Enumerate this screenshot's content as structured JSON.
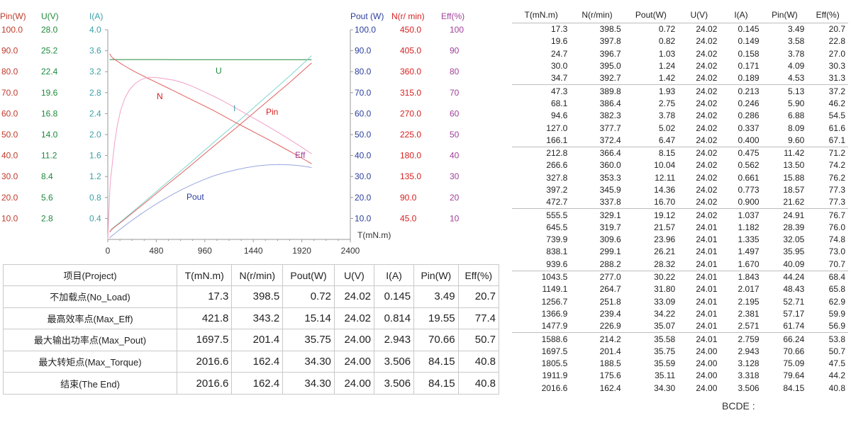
{
  "chart_data": {
    "type": "line",
    "xlabel": "T(mN.m)",
    "x_ticks": [
      "0",
      "480",
      "960",
      "1440",
      "1920",
      "2400"
    ],
    "xlim": [
      0,
      2400
    ],
    "left_axes": [
      {
        "name": "Pin(W)",
        "color": "#c0392b",
        "ticks": [
          "100.0",
          "90.0",
          "80.0",
          "70.0",
          "60.0",
          "50.0",
          "40.0",
          "30.0",
          "20.0",
          "10.0"
        ]
      },
      {
        "name": "U(V)",
        "color": "#1e8a3c",
        "ticks": [
          "28.0",
          "25.2",
          "22.4",
          "19.6",
          "16.8",
          "14.0",
          "11.2",
          "8.4",
          "5.6",
          "2.8"
        ]
      },
      {
        "name": "I(A)",
        "color": "#3aa0a8",
        "ticks": [
          "4.0",
          "3.6",
          "3.2",
          "2.8",
          "2.4",
          "2.0",
          "1.6",
          "1.2",
          "0.8",
          "0.4"
        ]
      }
    ],
    "right_axes": [
      {
        "name": "Pout (W)",
        "color": "#2a3f9d",
        "ticks": [
          "100.0",
          "90.0",
          "80.0",
          "70.0",
          "60.0",
          "50.0",
          "40.0",
          "30.0",
          "20.0",
          "10.0"
        ]
      },
      {
        "name": "N(r/ min)",
        "color": "#d62020",
        "ticks": [
          "450.0",
          "405.0",
          "360.0",
          "315.0",
          "270.0",
          "225.0",
          "180.0",
          "135.0",
          "90.0",
          "45.0"
        ]
      },
      {
        "name": "Eff(%)",
        "color": "#a0409a",
        "ticks": [
          "100",
          "90",
          "80",
          "70",
          "60",
          "50",
          "40",
          "30",
          "20",
          "10"
        ]
      }
    ],
    "series": [
      {
        "name": "U",
        "color": "#1e8a3c",
        "axis": "U(V)",
        "ymax": 28
      },
      {
        "name": "I",
        "color": "#7fd6cf",
        "axis": "I(A)",
        "ymax": 4
      },
      {
        "name": "Pin",
        "color": "#e06060",
        "axis": "Pin(W)",
        "ymax": 100
      },
      {
        "name": "N",
        "color": "#e06060",
        "axis": "N(r/ min)",
        "ymax": 450
      },
      {
        "name": "Eff",
        "color": "#f0a0c8",
        "axis": "Eff(%)",
        "ymax": 100
      },
      {
        "name": "Pout",
        "color": "#9aa6e0",
        "axis": "Pout (W)",
        "ymax": 100
      }
    ],
    "rows": [
      [
        17.3,
        398.5,
        0.72,
        24.02,
        0.145,
        3.49,
        20.7
      ],
      [
        19.6,
        397.8,
        0.82,
        24.02,
        0.149,
        3.58,
        22.8
      ],
      [
        24.7,
        396.7,
        1.03,
        24.02,
        0.158,
        3.78,
        27.0
      ],
      [
        30.0,
        395.0,
        1.24,
        24.02,
        0.171,
        4.09,
        30.3
      ],
      [
        34.7,
        392.7,
        1.42,
        24.02,
        0.189,
        4.53,
        31.3
      ],
      [
        47.3,
        389.8,
        1.93,
        24.02,
        0.213,
        5.13,
        37.2
      ],
      [
        68.1,
        386.4,
        2.75,
        24.02,
        0.246,
        5.9,
        46.2
      ],
      [
        94.6,
        382.3,
        3.78,
        24.02,
        0.286,
        6.88,
        54.5
      ],
      [
        127.0,
        377.7,
        5.02,
        24.02,
        0.337,
        8.09,
        61.6
      ],
      [
        166.1,
        372.4,
        6.47,
        24.02,
        0.4,
        9.6,
        67.1
      ],
      [
        212.8,
        366.4,
        8.15,
        24.02,
        0.475,
        11.42,
        71.2
      ],
      [
        266.6,
        360.0,
        10.04,
        24.02,
        0.562,
        13.5,
        74.2
      ],
      [
        327.8,
        353.3,
        12.11,
        24.02,
        0.661,
        15.88,
        76.2
      ],
      [
        397.2,
        345.9,
        14.36,
        24.02,
        0.773,
        18.57,
        77.3
      ],
      [
        472.7,
        337.8,
        16.7,
        24.02,
        0.9,
        21.62,
        77.3
      ],
      [
        555.5,
        329.1,
        19.12,
        24.02,
        1.037,
        24.91,
        76.7
      ],
      [
        645.5,
        319.7,
        21.57,
        24.01,
        1.182,
        28.39,
        76.0
      ],
      [
        739.9,
        309.6,
        23.96,
        24.01,
        1.335,
        32.05,
        74.8
      ],
      [
        838.1,
        299.1,
        26.21,
        24.01,
        1.497,
        35.95,
        73.0
      ],
      [
        939.6,
        288.2,
        28.32,
        24.01,
        1.67,
        40.09,
        70.7
      ],
      [
        1043.5,
        277.0,
        30.22,
        24.01,
        1.843,
        44.24,
        68.4
      ],
      [
        1149.1,
        264.7,
        31.8,
        24.01,
        2.017,
        48.43,
        65.8
      ],
      [
        1256.7,
        251.8,
        33.09,
        24.01,
        2.195,
        52.71,
        62.9
      ],
      [
        1366.9,
        239.4,
        34.22,
        24.01,
        2.381,
        57.17,
        59.9
      ],
      [
        1477.9,
        226.9,
        35.07,
        24.01,
        2.571,
        61.74,
        56.9
      ],
      [
        1588.6,
        214.2,
        35.58,
        24.01,
        2.759,
        66.24,
        53.8
      ],
      [
        1697.5,
        201.4,
        35.75,
        24.0,
        2.943,
        70.66,
        50.7
      ],
      [
        1805.5,
        188.5,
        35.59,
        24.0,
        3.128,
        75.09,
        47.5
      ],
      [
        1911.9,
        175.6,
        35.11,
        24.0,
        3.318,
        79.64,
        44.2
      ],
      [
        2016.6,
        162.4,
        34.3,
        24.0,
        3.506,
        84.15,
        40.8
      ]
    ]
  },
  "raw_table": {
    "headers": [
      "T(mN.m)",
      "N(r/min)",
      "Pout(W)",
      "U(V)",
      "I(A)",
      "Pin(W)",
      "Eff(%)"
    ],
    "rows": [
      [
        "17.3",
        "398.5",
        "0.72",
        "24.02",
        "0.145",
        "3.49",
        "20.7"
      ],
      [
        "19.6",
        "397.8",
        "0.82",
        "24.02",
        "0.149",
        "3.58",
        "22.8"
      ],
      [
        "24.7",
        "396.7",
        "1.03",
        "24.02",
        "0.158",
        "3.78",
        "27.0"
      ],
      [
        "30.0",
        "395.0",
        "1.24",
        "24.02",
        "0.171",
        "4.09",
        "30.3"
      ],
      [
        "34.7",
        "392.7",
        "1.42",
        "24.02",
        "0.189",
        "4.53",
        "31.3"
      ],
      [
        "47.3",
        "389.8",
        "1.93",
        "24.02",
        "0.213",
        "5.13",
        "37.2"
      ],
      [
        "68.1",
        "386.4",
        "2.75",
        "24.02",
        "0.246",
        "5.90",
        "46.2"
      ],
      [
        "94.6",
        "382.3",
        "3.78",
        "24.02",
        "0.286",
        "6.88",
        "54.5"
      ],
      [
        "127.0",
        "377.7",
        "5.02",
        "24.02",
        "0.337",
        "8.09",
        "61.6"
      ],
      [
        "166.1",
        "372.4",
        "6.47",
        "24.02",
        "0.400",
        "9.60",
        "67.1"
      ],
      [
        "212.8",
        "366.4",
        "8.15",
        "24.02",
        "0.475",
        "11.42",
        "71.2"
      ],
      [
        "266.6",
        "360.0",
        "10.04",
        "24.02",
        "0.562",
        "13.50",
        "74.2"
      ],
      [
        "327.8",
        "353.3",
        "12.11",
        "24.02",
        "0.661",
        "15.88",
        "76.2"
      ],
      [
        "397.2",
        "345.9",
        "14.36",
        "24.02",
        "0.773",
        "18.57",
        "77.3"
      ],
      [
        "472.7",
        "337.8",
        "16.70",
        "24.02",
        "0.900",
        "21.62",
        "77.3"
      ],
      [
        "555.5",
        "329.1",
        "19.12",
        "24.02",
        "1.037",
        "24.91",
        "76.7"
      ],
      [
        "645.5",
        "319.7",
        "21.57",
        "24.01",
        "1.182",
        "28.39",
        "76.0"
      ],
      [
        "739.9",
        "309.6",
        "23.96",
        "24.01",
        "1.335",
        "32.05",
        "74.8"
      ],
      [
        "838.1",
        "299.1",
        "26.21",
        "24.01",
        "1.497",
        "35.95",
        "73.0"
      ],
      [
        "939.6",
        "288.2",
        "28.32",
        "24.01",
        "1.670",
        "40.09",
        "70.7"
      ],
      [
        "1043.5",
        "277.0",
        "30.22",
        "24.01",
        "1.843",
        "44.24",
        "68.4"
      ],
      [
        "1149.1",
        "264.7",
        "31.80",
        "24.01",
        "2.017",
        "48.43",
        "65.8"
      ],
      [
        "1256.7",
        "251.8",
        "33.09",
        "24.01",
        "2.195",
        "52.71",
        "62.9"
      ],
      [
        "1366.9",
        "239.4",
        "34.22",
        "24.01",
        "2.381",
        "57.17",
        "59.9"
      ],
      [
        "1477.9",
        "226.9",
        "35.07",
        "24.01",
        "2.571",
        "61.74",
        "56.9"
      ],
      [
        "1588.6",
        "214.2",
        "35.58",
        "24.01",
        "2.759",
        "66.24",
        "53.8"
      ],
      [
        "1697.5",
        "201.4",
        "35.75",
        "24.00",
        "2.943",
        "70.66",
        "50.7"
      ],
      [
        "1805.5",
        "188.5",
        "35.59",
        "24.00",
        "3.128",
        "75.09",
        "47.5"
      ],
      [
        "1911.9",
        "175.6",
        "35.11",
        "24.00",
        "3.318",
        "79.64",
        "44.2"
      ],
      [
        "2016.6",
        "162.4",
        "34.30",
        "24.00",
        "3.506",
        "84.15",
        "40.8"
      ]
    ]
  },
  "summary_table": {
    "headers": [
      "项目(Project)",
      "T(mN.m)",
      "N(r/min)",
      "Pout(W)",
      "U(V)",
      "I(A)",
      "Pin(W)",
      "Eff(%)"
    ],
    "rows": [
      {
        "label": "不加载点(No_Load)",
        "values": [
          "17.3",
          "398.5",
          "0.72",
          "24.02",
          "0.145",
          "3.49",
          "20.7"
        ]
      },
      {
        "label": "最高效率点(Max_Eff)",
        "values": [
          "421.8",
          "343.2",
          "15.14",
          "24.02",
          "0.814",
          "19.55",
          "77.4"
        ]
      },
      {
        "label": "最大输出功率点(Max_Pout)",
        "values": [
          "1697.5",
          "201.4",
          "35.75",
          "24.00",
          "2.943",
          "70.66",
          "50.7"
        ]
      },
      {
        "label": "最大转矩点(Max_Torque)",
        "values": [
          "2016.6",
          "162.4",
          "34.30",
          "24.00",
          "3.506",
          "84.15",
          "40.8"
        ]
      },
      {
        "label": "结束(The End)",
        "values": [
          "2016.6",
          "162.4",
          "34.30",
          "24.00",
          "3.506",
          "84.15",
          "40.8"
        ]
      }
    ]
  },
  "footer": {
    "text": "BCDE     :"
  }
}
